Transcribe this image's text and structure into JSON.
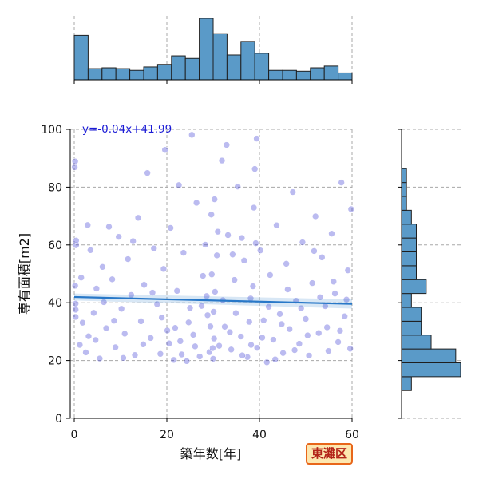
{
  "chart_data": {
    "type": "scatter",
    "xlabel": "築年数[年]",
    "ylabel": "専有面積[m2]",
    "xlim": [
      0,
      60
    ],
    "ylim": [
      0,
      100
    ],
    "xticks": [
      "0",
      "20",
      "40",
      "60"
    ],
    "yticks": [
      "0",
      "20",
      "40",
      "60",
      "80",
      "100"
    ],
    "grid": true,
    "annotation": "y=-0.04x+41.99",
    "regression": {
      "slope": -0.04,
      "intercept": 41.99
    },
    "badge": "東灘区",
    "colors": {
      "point": "#2b2bd0",
      "regression": "#2878c8",
      "hist_fill": "#5a9ac8",
      "hist_edge": "#1f1f1f"
    },
    "points": [
      [
        0.3,
        35.1
      ],
      [
        0.3,
        37.6
      ],
      [
        0.4,
        59.9
      ],
      [
        0.1,
        86.9
      ],
      [
        0.2,
        88.9
      ],
      [
        0.4,
        61.5
      ],
      [
        0.2,
        45.9
      ],
      [
        0.3,
        39.7
      ],
      [
        1.2,
        25.4
      ],
      [
        1.8,
        33.1
      ],
      [
        2.5,
        22.8
      ],
      [
        3.1,
        28.4
      ],
      [
        3.5,
        58.2
      ],
      [
        4.2,
        36.5
      ],
      [
        4.8,
        44.9
      ],
      [
        5.5,
        20.7
      ],
      [
        6.1,
        52.4
      ],
      [
        6.9,
        31.2
      ],
      [
        7.5,
        66.3
      ],
      [
        8.2,
        48.1
      ],
      [
        8.9,
        24.6
      ],
      [
        9.6,
        62.8
      ],
      [
        10.2,
        37.9
      ],
      [
        10.9,
        29.3
      ],
      [
        11.6,
        55.1
      ],
      [
        12.3,
        42.7
      ],
      [
        13.1,
        21.9
      ],
      [
        13.8,
        69.4
      ],
      [
        14.4,
        33.6
      ],
      [
        15.1,
        46.2
      ],
      [
        15.8,
        84.9
      ],
      [
        16.5,
        27.8
      ],
      [
        17.2,
        58.8
      ],
      [
        17.9,
        39.5
      ],
      [
        18.6,
        22.3
      ],
      [
        19.3,
        51.7
      ],
      [
        20.1,
        30.4
      ],
      [
        20.8,
        65.9
      ],
      [
        21.5,
        20.2
      ],
      [
        22.2,
        44.1
      ],
      [
        22.9,
        26.7
      ],
      [
        23.6,
        57.3
      ],
      [
        24.3,
        19.8
      ],
      [
        25.0,
        38.2
      ],
      [
        25.7,
        28.9
      ],
      [
        26.4,
        74.6
      ],
      [
        27.1,
        21.4
      ],
      [
        27.8,
        49.3
      ],
      [
        28.3,
        60.1
      ],
      [
        28.8,
        35.7
      ],
      [
        29.2,
        22.9
      ],
      [
        29.6,
        70.5
      ],
      [
        30.0,
        20.6
      ],
      [
        30.4,
        43.8
      ],
      [
        30.8,
        56.4
      ],
      [
        31.3,
        25.1
      ],
      [
        31.9,
        89.2
      ],
      [
        32.5,
        31.7
      ],
      [
        33.2,
        63.4
      ],
      [
        33.9,
        23.8
      ],
      [
        34.6,
        47.9
      ],
      [
        35.3,
        80.2
      ],
      [
        36.0,
        28.3
      ],
      [
        36.7,
        54.6
      ],
      [
        37.4,
        21.2
      ],
      [
        38.1,
        41.5
      ],
      [
        38.8,
        72.9
      ],
      [
        39.5,
        24.4
      ],
      [
        40.2,
        58.1
      ],
      [
        40.9,
        33.9
      ],
      [
        41.6,
        19.4
      ],
      [
        42.3,
        49.6
      ],
      [
        43.0,
        27.2
      ],
      [
        43.7,
        66.8
      ],
      [
        44.4,
        36.1
      ],
      [
        45.1,
        22.6
      ],
      [
        45.8,
        53.5
      ],
      [
        46.5,
        30.9
      ],
      [
        47.2,
        78.3
      ],
      [
        47.9,
        40.7
      ],
      [
        48.6,
        25.8
      ],
      [
        49.3,
        60.9
      ],
      [
        50.0,
        34.4
      ],
      [
        50.7,
        21.7
      ],
      [
        51.4,
        46.8
      ],
      [
        52.1,
        69.9
      ],
      [
        52.8,
        29.5
      ],
      [
        53.5,
        55.7
      ],
      [
        54.2,
        38.8
      ],
      [
        54.9,
        23.3
      ],
      [
        55.6,
        63.9
      ],
      [
        56.3,
        43.2
      ],
      [
        57.0,
        26.4
      ],
      [
        57.7,
        81.6
      ],
      [
        58.4,
        35.3
      ],
      [
        59.1,
        51.2
      ],
      [
        59.6,
        24.1
      ],
      [
        59.8,
        72.4
      ],
      [
        1.5,
        48.7
      ],
      [
        2.9,
        66.9
      ],
      [
        4.6,
        27.1
      ],
      [
        6.4,
        40.2
      ],
      [
        8.6,
        33.8
      ],
      [
        10.6,
        20.9
      ],
      [
        12.7,
        61.3
      ],
      [
        14.9,
        25.6
      ],
      [
        16.9,
        43.5
      ],
      [
        18.9,
        34.9
      ],
      [
        20.5,
        25.9
      ],
      [
        21.8,
        31.3
      ],
      [
        23.2,
        22.1
      ],
      [
        24.7,
        33.2
      ],
      [
        26.1,
        24.9
      ],
      [
        27.5,
        38.9
      ],
      [
        28.6,
        42.3
      ],
      [
        29.4,
        31.8
      ],
      [
        30.2,
        27.6
      ],
      [
        31.0,
        64.6
      ],
      [
        32.1,
        40.9
      ],
      [
        33.6,
        29.8
      ],
      [
        34.9,
        36.4
      ],
      [
        36.3,
        21.8
      ],
      [
        37.8,
        33.4
      ],
      [
        39.2,
        60.6
      ],
      [
        40.6,
        27.9
      ],
      [
        42.0,
        38.6
      ],
      [
        43.4,
        20.4
      ],
      [
        44.8,
        32.6
      ],
      [
        46.1,
        44.6
      ],
      [
        47.6,
        23.6
      ],
      [
        49.0,
        38.1
      ],
      [
        50.4,
        28.7
      ],
      [
        51.8,
        57.9
      ],
      [
        53.1,
        41.9
      ],
      [
        54.6,
        31.5
      ],
      [
        56.0,
        47.3
      ],
      [
        57.4,
        30.3
      ],
      [
        58.8,
        41.1
      ],
      [
        29.9,
        24.3
      ],
      [
        30.1,
        36.9
      ],
      [
        29.7,
        49.8
      ],
      [
        30.3,
        75.8
      ],
      [
        38.2,
        25.4
      ],
      [
        38.6,
        45.7
      ],
      [
        39.0,
        86.3
      ],
      [
        39.4,
        96.8
      ],
      [
        25.4,
        98.1
      ],
      [
        32.9,
        94.6
      ],
      [
        19.6,
        92.9
      ],
      [
        36.2,
        62.4
      ],
      [
        34.2,
        56.7
      ],
      [
        22.6,
        80.7
      ]
    ],
    "top_hist": {
      "bin_edges": [
        0,
        3,
        6,
        9,
        12,
        15,
        18,
        21,
        24,
        27,
        30,
        33,
        36,
        39,
        42,
        45,
        48,
        51,
        54,
        57,
        60
      ],
      "counts": [
        52,
        13,
        14,
        13,
        11,
        15,
        18,
        28,
        25,
        72,
        54,
        29,
        45,
        31,
        11,
        11,
        10,
        14,
        16,
        8
      ]
    },
    "right_hist": {
      "bin_edges": [
        0,
        4.8,
        9.6,
        14.4,
        19.2,
        24.0,
        28.8,
        33.6,
        38.4,
        43.2,
        48.0,
        52.8,
        57.6,
        62.4,
        67.2,
        72.0,
        76.8,
        81.6,
        86.4,
        91.2,
        96.0
      ],
      "counts": [
        0,
        0,
        2,
        12,
        11,
        6,
        4,
        4,
        2,
        5,
        3,
        3,
        3,
        3,
        2,
        1,
        1,
        1,
        0,
        0
      ]
    }
  }
}
